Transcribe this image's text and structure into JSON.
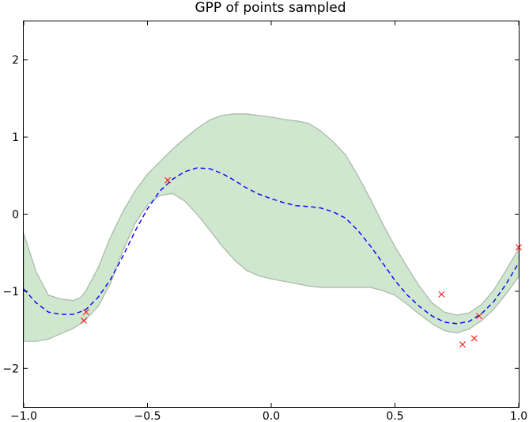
{
  "chart_data": {
    "type": "line",
    "title": "GPP of points sampled",
    "xlabel": "",
    "ylabel": "",
    "xlim": [
      -1.0,
      1.0
    ],
    "ylim": [
      -2.5,
      2.5
    ],
    "xticks": [
      -1.0,
      -0.5,
      0.0,
      0.5,
      1.0
    ],
    "xtick_labels": [
      "−1.0",
      "−0.5",
      "0.0",
      "0.5",
      "1.0"
    ],
    "yticks": [
      -2,
      -1,
      0,
      1,
      2
    ],
    "ytick_labels": [
      "−2",
      "−1",
      "0",
      "1",
      "2"
    ],
    "grid": false,
    "legend": "none",
    "series": [
      {
        "kind": "band",
        "color": "#cfe6cf",
        "edge_color": "#a7b7a7",
        "x": [
          -1.0,
          -0.95,
          -0.9,
          -0.85,
          -0.8,
          -0.77,
          -0.75,
          -0.7,
          -0.65,
          -0.6,
          -0.55,
          -0.5,
          -0.45,
          -0.4,
          -0.35,
          -0.3,
          -0.25,
          -0.2,
          -0.15,
          -0.1,
          -0.05,
          0.0,
          0.05,
          0.1,
          0.15,
          0.2,
          0.25,
          0.3,
          0.35,
          0.4,
          0.45,
          0.5,
          0.55,
          0.6,
          0.65,
          0.7,
          0.75,
          0.8,
          0.85,
          0.9,
          0.95,
          1.0
        ],
        "upper": [
          -0.25,
          -0.75,
          -1.05,
          -1.1,
          -1.12,
          -1.08,
          -1.0,
          -0.7,
          -0.3,
          0.03,
          0.3,
          0.52,
          0.68,
          0.84,
          0.98,
          1.11,
          1.22,
          1.28,
          1.3,
          1.3,
          1.28,
          1.26,
          1.23,
          1.21,
          1.18,
          1.08,
          0.94,
          0.77,
          0.5,
          0.2,
          -0.12,
          -0.42,
          -0.69,
          -0.94,
          -1.15,
          -1.27,
          -1.31,
          -1.28,
          -1.17,
          -0.98,
          -0.72,
          -0.45
        ],
        "lower": [
          -1.65,
          -1.65,
          -1.62,
          -1.55,
          -1.48,
          -1.42,
          -1.37,
          -1.2,
          -0.9,
          -0.48,
          -0.12,
          0.12,
          0.24,
          0.27,
          0.17,
          0.0,
          -0.2,
          -0.41,
          -0.59,
          -0.73,
          -0.8,
          -0.84,
          -0.87,
          -0.9,
          -0.93,
          -0.95,
          -0.95,
          -0.95,
          -0.95,
          -0.95,
          -0.99,
          -1.05,
          -1.17,
          -1.3,
          -1.42,
          -1.51,
          -1.54,
          -1.49,
          -1.38,
          -1.23,
          -1.03,
          -0.81
        ]
      },
      {
        "kind": "mean",
        "color": "#0000ff",
        "style": "dashed",
        "x": [
          -1.0,
          -0.95,
          -0.9,
          -0.85,
          -0.8,
          -0.75,
          -0.7,
          -0.65,
          -0.6,
          -0.55,
          -0.5,
          -0.45,
          -0.4,
          -0.35,
          -0.3,
          -0.25,
          -0.2,
          -0.15,
          -0.1,
          -0.05,
          0.0,
          0.05,
          0.1,
          0.15,
          0.2,
          0.25,
          0.3,
          0.35,
          0.4,
          0.45,
          0.5,
          0.55,
          0.6,
          0.65,
          0.7,
          0.75,
          0.8,
          0.85,
          0.9,
          0.95,
          1.0
        ],
        "y": [
          -0.97,
          -1.15,
          -1.27,
          -1.3,
          -1.3,
          -1.24,
          -1.08,
          -0.85,
          -0.55,
          -0.22,
          0.07,
          0.3,
          0.45,
          0.55,
          0.6,
          0.59,
          0.53,
          0.44,
          0.34,
          0.26,
          0.2,
          0.15,
          0.11,
          0.1,
          0.08,
          0.03,
          -0.05,
          -0.21,
          -0.41,
          -0.63,
          -0.86,
          -1.05,
          -1.2,
          -1.32,
          -1.4,
          -1.42,
          -1.39,
          -1.29,
          -1.13,
          -0.9,
          -0.63
        ]
      },
      {
        "kind": "points",
        "color": "#ff0000",
        "marker": "x",
        "x": [
          -0.757,
          -0.748,
          -0.418,
          0.688,
          0.773,
          0.82,
          0.84,
          1.0
        ],
        "y": [
          -1.38,
          -1.27,
          0.44,
          -1.04,
          -1.69,
          -1.61,
          -1.32,
          -0.43
        ]
      }
    ]
  }
}
